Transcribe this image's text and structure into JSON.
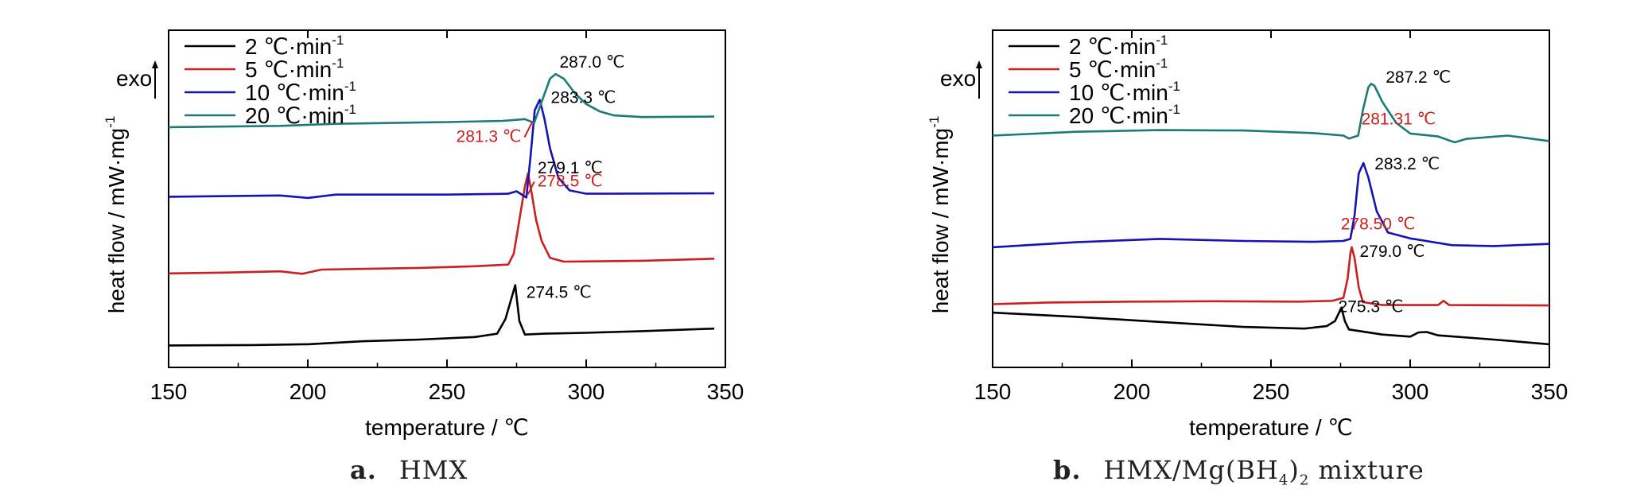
{
  "chart_data": [
    {
      "type": "line",
      "panel_label": "a.",
      "caption": "HMX",
      "xlabel": "temperature / ℃",
      "ylabel": "heat flow / mW·mg",
      "ylabel_sup": "-1",
      "exo_label": "exo",
      "xlim": [
        150,
        350
      ],
      "xticks": [
        "150",
        "200",
        "250",
        "300",
        "350"
      ],
      "legend_position": "top-left",
      "series": [
        {
          "name": "2 ℃·min",
          "sup": "-1",
          "color": "#000000",
          "points": [
            [
              150,
              0.2
            ],
            [
              180,
              0.3
            ],
            [
              200,
              0.5
            ],
            [
              220,
              1.2
            ],
            [
              240,
              1.6
            ],
            [
              260,
              2.2
            ],
            [
              268,
              3.0
            ],
            [
              271,
              6.5
            ],
            [
              274.5,
              14.5
            ],
            [
              276,
              6.0
            ],
            [
              278,
              2.8
            ],
            [
              285,
              3.0
            ],
            [
              300,
              3.2
            ],
            [
              320,
              3.6
            ],
            [
              346,
              4.2
            ]
          ]
        },
        {
          "name": "5 ℃·min",
          "sup": "-1",
          "color": "#cc1f1f",
          "points": [
            [
              150,
              17.3
            ],
            [
              170,
              17.5
            ],
            [
              190,
              17.8
            ],
            [
              198,
              17.2
            ],
            [
              205,
              18.2
            ],
            [
              240,
              18.6
            ],
            [
              260,
              19.0
            ],
            [
              272,
              19.4
            ],
            [
              274,
              22
            ],
            [
              276,
              30
            ],
            [
              278,
              38
            ],
            [
              279.1,
              41
            ],
            [
              280.5,
              36
            ],
            [
              282,
              30
            ],
            [
              284,
              25
            ],
            [
              287,
              21
            ],
            [
              292,
              20.1
            ],
            [
              320,
              20.3
            ],
            [
              346,
              20.8
            ]
          ]
        },
        {
          "name": "10 ℃·min",
          "sup": "-1",
          "color": "#1414b4",
          "points": [
            [
              150,
              35.5
            ],
            [
              190,
              35.8
            ],
            [
              200,
              35.2
            ],
            [
              210,
              36.0
            ],
            [
              250,
              36.0
            ],
            [
              272,
              36.2
            ],
            [
              275,
              36.8
            ],
            [
              278.5,
              35.3
            ],
            [
              280,
              45
            ],
            [
              281.5,
              56
            ],
            [
              283.3,
              58.5
            ],
            [
              285,
              54
            ],
            [
              287,
              47
            ],
            [
              290,
              40
            ],
            [
              294,
              37
            ],
            [
              300,
              36.2
            ],
            [
              346,
              36.3
            ]
          ]
        },
        {
          "name": "20 ℃·min",
          "sup": "-1",
          "color": "#1e7a78",
          "points": [
            [
              150,
              52.0
            ],
            [
              190,
              52.3
            ],
            [
              210,
              52.8
            ],
            [
              250,
              53.2
            ],
            [
              270,
              53.5
            ],
            [
              278,
              53.9
            ],
            [
              281.3,
              53.0
            ],
            [
              284,
              58
            ],
            [
              287.0,
              63.5
            ],
            [
              289,
              64.6
            ],
            [
              292,
              63.5
            ],
            [
              296,
              60.0
            ],
            [
              300,
              57.5
            ],
            [
              305,
              55.7
            ],
            [
              310,
              54.8
            ],
            [
              320,
              54.4
            ],
            [
              346,
              54.5
            ]
          ]
        }
      ],
      "annotations": [
        {
          "text": "287.0 ℃",
          "color": "#000000",
          "x": 287.0,
          "series": 3
        },
        {
          "text": "283.3 ℃",
          "color": "#000000",
          "x": 283.3,
          "series": 2
        },
        {
          "text": "281.3 ℃",
          "color": "#cc1f1f",
          "x": 281.3,
          "series": 3,
          "arrow": true
        },
        {
          "text": "278.5 ℃",
          "color": "#cc1f1f",
          "x": 278.5,
          "series": 2,
          "arrow": true
        },
        {
          "text": "279.1 ℃",
          "color": "#000000",
          "x": 279.1,
          "series": 1
        },
        {
          "text": "274.5 ℃",
          "color": "#000000",
          "x": 274.5,
          "series": 0
        }
      ]
    },
    {
      "type": "line",
      "panel_label": "b.",
      "caption": "HMX/Mg(BH",
      "caption_sub1": "4",
      "caption_mid": ")",
      "caption_sub2": "2",
      "caption_end": " mixture",
      "xlabel": "temperature / ℃",
      "ylabel": "heat flow / mW·mg",
      "ylabel_sup": "-1",
      "exo_label": "exo",
      "xlim": [
        150,
        350
      ],
      "xticks": [
        "150",
        "200",
        "250",
        "300",
        "350"
      ],
      "legend_position": "top-left",
      "series": [
        {
          "name": "2 ℃·min",
          "sup": "-1",
          "color": "#000000",
          "points": [
            [
              150,
              8.0
            ],
            [
              180,
              7.0
            ],
            [
              210,
              5.8
            ],
            [
              240,
              4.6
            ],
            [
              262,
              4.2
            ],
            [
              270,
              4.8
            ],
            [
              273,
              6.0
            ],
            [
              275.3,
              9.2
            ],
            [
              276.5,
              6.0
            ],
            [
              278,
              4.0
            ],
            [
              290,
              2.8
            ],
            [
              300,
              2.3
            ],
            [
              303,
              3.3
            ],
            [
              306,
              3.4
            ],
            [
              310,
              2.6
            ],
            [
              330,
              1.6
            ],
            [
              350,
              0.5
            ]
          ]
        },
        {
          "name": "5 ℃·min",
          "sup": "-1",
          "color": "#cc1f1f",
          "points": [
            [
              150,
              10.0
            ],
            [
              170,
              10.4
            ],
            [
              200,
              10.6
            ],
            [
              230,
              10.7
            ],
            [
              260,
              10.6
            ],
            [
              272,
              10.8
            ],
            [
              276,
              11.5
            ],
            [
              277.5,
              16
            ],
            [
              278.5,
              22
            ],
            [
              279.0,
              23.5
            ],
            [
              280,
              21
            ],
            [
              281.5,
              14
            ],
            [
              283,
              10.5
            ],
            [
              290,
              9.8
            ],
            [
              310,
              9.8
            ],
            [
              312,
              10.8
            ],
            [
              314,
              9.8
            ],
            [
              350,
              9.7
            ]
          ]
        },
        {
          "name": "10 ℃·min",
          "sup": "-1",
          "color": "#1414b4",
          "points": [
            [
              150,
              23.5
            ],
            [
              180,
              24.7
            ],
            [
              210,
              25.5
            ],
            [
              240,
              25.0
            ],
            [
              265,
              24.8
            ],
            [
              276,
              25.0
            ],
            [
              278.5,
              25.5
            ],
            [
              280,
              31
            ],
            [
              281.5,
              41
            ],
            [
              283.2,
              43.5
            ],
            [
              285,
              40
            ],
            [
              288,
              32
            ],
            [
              292,
              27.0
            ],
            [
              300,
              25.6
            ],
            [
              315,
              24.0
            ],
            [
              330,
              23.8
            ],
            [
              350,
              24.3
            ]
          ]
        },
        {
          "name": "20 ℃·min",
          "sup": "-1",
          "color": "#1e7a78",
          "points": [
            [
              150,
              50.0
            ],
            [
              180,
              50.9
            ],
            [
              210,
              51.3
            ],
            [
              240,
              51.2
            ],
            [
              265,
              50.6
            ],
            [
              276,
              50.0
            ],
            [
              278,
              49.3
            ],
            [
              281.31,
              50.0
            ],
            [
              283,
              56
            ],
            [
              285,
              61.5
            ],
            [
              286,
              62.3
            ],
            [
              287.2,
              61.8
            ],
            [
              290,
              58.0
            ],
            [
              295,
              53.0
            ],
            [
              300,
              50.5
            ],
            [
              310,
              49.8
            ],
            [
              316,
              48.4
            ],
            [
              320,
              49.2
            ],
            [
              335,
              50.0
            ],
            [
              350,
              48.7
            ]
          ]
        }
      ],
      "annotations": [
        {
          "text": "287.2 ℃",
          "color": "#000000",
          "x": 287.2,
          "series": 3
        },
        {
          "text": "281.31 ℃",
          "color": "#cc1f1f",
          "x": 281.31,
          "series": 3
        },
        {
          "text": "283.2 ℃",
          "color": "#000000",
          "x": 283.2,
          "series": 2
        },
        {
          "text": "278.50 ℃",
          "color": "#cc1f1f",
          "x": 278.5,
          "series": 2
        },
        {
          "text": "279.0 ℃",
          "color": "#000000",
          "x": 279.0,
          "series": 1
        },
        {
          "text": "275.3 ℃",
          "color": "#000000",
          "x": 275.3,
          "series": 0
        }
      ]
    }
  ]
}
